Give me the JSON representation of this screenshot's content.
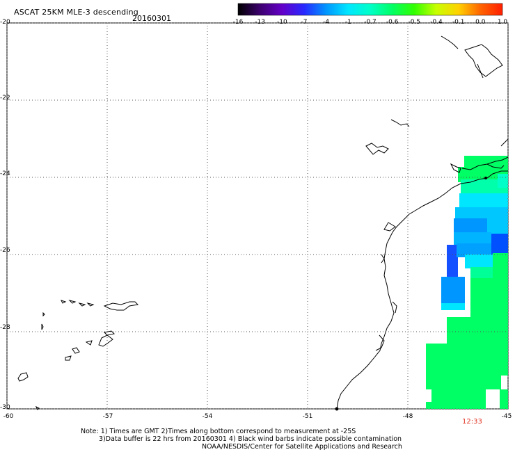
{
  "header": {
    "title": "ASCAT 25KM MLE-3 descending",
    "date": "20160301"
  },
  "colorbar": {
    "ticks": [
      "-16",
      "-13",
      "-10",
      "-7",
      "-4",
      "-1",
      "-0.7",
      "-0.6",
      "-0.5",
      "-0.4",
      "-0.1",
      "0.0",
      "1.0"
    ],
    "colors": [
      "#000000",
      "#3c006e",
      "#6400c8",
      "#2828ff",
      "#0096ff",
      "#00e6ff",
      "#00ffc8",
      "#00ff64",
      "#32ff00",
      "#c8ff00",
      "#ffd200",
      "#ff6400",
      "#ff1e00"
    ]
  },
  "axes": {
    "y_ticks": [
      "-20",
      "-22",
      "-24",
      "-26",
      "-28",
      "-30"
    ],
    "x_ticks": [
      "-60",
      "-57",
      "-54",
      "-51",
      "-48",
      "-45"
    ]
  },
  "pass_time": "12:33",
  "notes": {
    "line1": "Note: 1) Times are GMT 2)Times along bottom correspond to measurement at -25S",
    "line2": "3)Data buffer is 22 hrs from 20160301 4) Black wind barbs indicate possible contamination",
    "line3": "NOAA/NESDIS/Center for Satellite Applications and Research"
  }
}
